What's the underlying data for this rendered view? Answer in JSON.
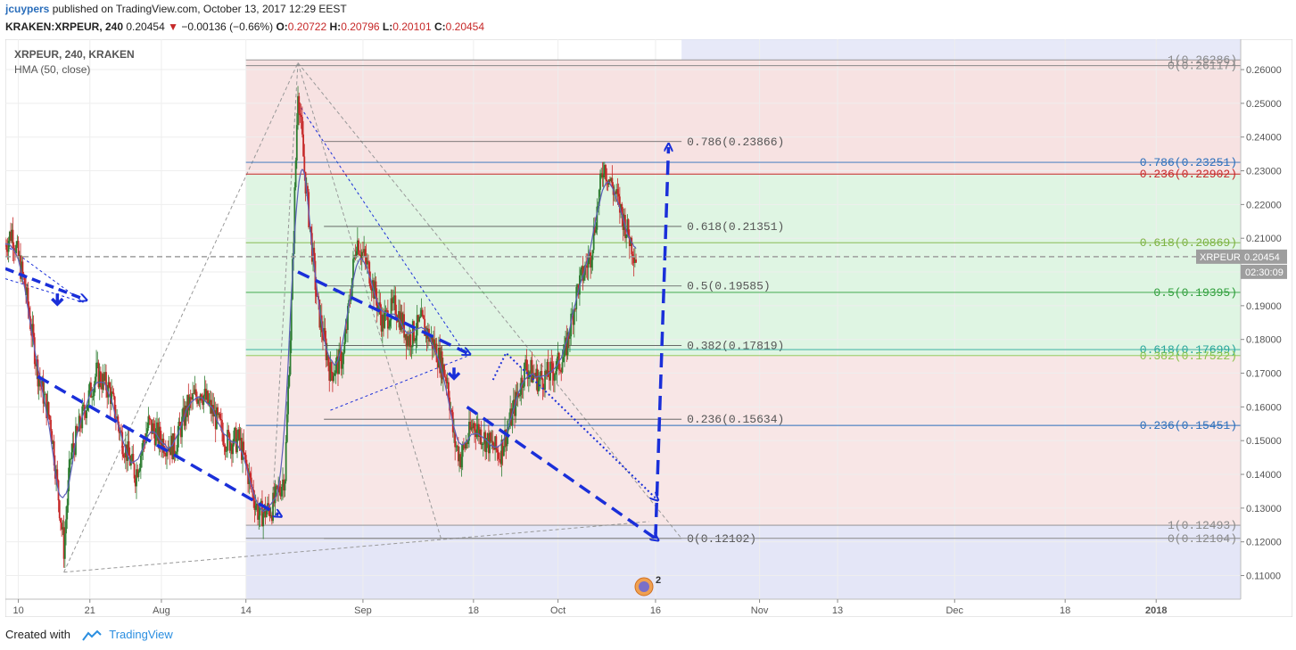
{
  "header": {
    "author": "jcuypers",
    "published": "published on TradingView.com, October 13, 2017 12:29 EEST"
  },
  "ohlc": {
    "symbol": "KRAKEN:XRPEUR, 240",
    "last": "0.20454",
    "change": "−0.00136 (−0.66%)",
    "o_label": "O:",
    "o": "0.20722",
    "h_label": "H:",
    "h": "0.20796",
    "l_label": "L:",
    "l": "0.20101",
    "c_label": "C:",
    "c": "0.20454"
  },
  "legend": {
    "title": "XRPEUR, 240, KRAKEN",
    "indicator": "HMA (50, close)"
  },
  "price_badge": {
    "symbol": "XRPEUR",
    "value": "0.20454",
    "countdown": "02:30:09"
  },
  "event_badge": {
    "count": "2"
  },
  "footer": {
    "created_with": "Created with",
    "brand": "TradingView"
  },
  "colors": {
    "up": "#2e7d32",
    "down": "#c62828",
    "hma": "#5b5fb8",
    "arrow": "#1a2fd9",
    "fib_red_zone": "#f3d6d6",
    "fib_green_zone": "#d7f2dc",
    "fib_blue_zone": "#dde0f5"
  },
  "chart_data": {
    "type": "candlestick",
    "y_axis": {
      "min": 0.103,
      "max": 0.269,
      "ticks": [
        0.26,
        0.25,
        0.24,
        0.23,
        0.22,
        0.21,
        0.2,
        0.19,
        0.18,
        0.17,
        0.16,
        0.15,
        0.14,
        0.13,
        0.12,
        0.11
      ],
      "tick_labels": [
        "0.26000",
        "0.25000",
        "0.24000",
        "0.23000",
        "0.22000",
        "0.21000",
        "0.20000",
        "0.19000",
        "0.18000",
        "0.17000",
        "0.16000",
        "0.15000",
        "0.14000",
        "0.13000",
        "0.12000",
        "0.11000"
      ]
    },
    "x_axis": {
      "start": "2017-07-08",
      "end": "2018-01-14",
      "ticks": [
        {
          "date": "2017-07-10",
          "label": "10"
        },
        {
          "date": "2017-07-21",
          "label": "21"
        },
        {
          "date": "2017-08-01",
          "label": "Aug"
        },
        {
          "date": "2017-08-14",
          "label": "14"
        },
        {
          "date": "2017-09-01",
          "label": "Sep"
        },
        {
          "date": "2017-09-18",
          "label": "18"
        },
        {
          "date": "2017-10-01",
          "label": "Oct"
        },
        {
          "date": "2017-10-16",
          "label": "16"
        },
        {
          "date": "2017-11-01",
          "label": "Nov"
        },
        {
          "date": "2017-11-13",
          "label": "13"
        },
        {
          "date": "2017-12-01",
          "label": "Dec"
        },
        {
          "date": "2017-12-18",
          "label": "18"
        },
        {
          "date": "2018-01-01",
          "label": "2018"
        }
      ]
    },
    "price_path": [
      [
        "2017-07-08",
        0.208
      ],
      [
        "2017-07-09",
        0.212
      ],
      [
        "2017-07-11",
        0.196
      ],
      [
        "2017-07-13",
        0.17
      ],
      [
        "2017-07-15",
        0.155
      ],
      [
        "2017-07-17",
        0.118
      ],
      [
        "2017-07-18",
        0.145
      ],
      [
        "2017-07-20",
        0.158
      ],
      [
        "2017-07-22",
        0.17
      ],
      [
        "2017-07-24",
        0.165
      ],
      [
        "2017-07-26",
        0.15
      ],
      [
        "2017-07-28",
        0.14
      ],
      [
        "2017-07-30",
        0.155
      ],
      [
        "2017-08-01",
        0.15
      ],
      [
        "2017-08-03",
        0.148
      ],
      [
        "2017-08-05",
        0.16
      ],
      [
        "2017-08-07",
        0.165
      ],
      [
        "2017-08-09",
        0.158
      ],
      [
        "2017-08-11",
        0.15
      ],
      [
        "2017-08-13",
        0.15
      ],
      [
        "2017-08-15",
        0.135
      ],
      [
        "2017-08-16",
        0.128
      ],
      [
        "2017-08-18",
        0.13
      ],
      [
        "2017-08-20",
        0.14
      ],
      [
        "2017-08-21",
        0.19
      ],
      [
        "2017-08-22",
        0.255
      ],
      [
        "2017-08-23",
        0.23
      ],
      [
        "2017-08-25",
        0.19
      ],
      [
        "2017-08-27",
        0.17
      ],
      [
        "2017-08-29",
        0.175
      ],
      [
        "2017-08-31",
        0.21
      ],
      [
        "2017-09-02",
        0.2
      ],
      [
        "2017-09-04",
        0.185
      ],
      [
        "2017-09-06",
        0.19
      ],
      [
        "2017-09-08",
        0.18
      ],
      [
        "2017-09-10",
        0.185
      ],
      [
        "2017-09-12",
        0.178
      ],
      [
        "2017-09-14",
        0.168
      ],
      [
        "2017-09-15",
        0.15
      ],
      [
        "2017-09-16",
        0.145
      ],
      [
        "2017-09-18",
        0.155
      ],
      [
        "2017-09-20",
        0.15
      ],
      [
        "2017-09-22",
        0.146
      ],
      [
        "2017-09-24",
        0.158
      ],
      [
        "2017-09-26",
        0.172
      ],
      [
        "2017-09-28",
        0.168
      ],
      [
        "2017-09-30",
        0.17
      ],
      [
        "2017-10-02",
        0.175
      ],
      [
        "2017-10-04",
        0.195
      ],
      [
        "2017-10-06",
        0.205
      ],
      [
        "2017-10-08",
        0.232
      ],
      [
        "2017-10-10",
        0.222
      ],
      [
        "2017-10-12",
        0.21
      ],
      [
        "2017-10-13",
        0.2045
      ]
    ],
    "fib_retracement_black": {
      "from": "2017-09-03",
      "to": "2017-10-20",
      "levels": [
        {
          "label": "0.786(0.23866)",
          "value": 0.23866
        },
        {
          "label": "0.618(0.21351)",
          "value": 0.21351
        },
        {
          "label": "0.5(0.19585)",
          "value": 0.19585
        },
        {
          "label": "0.382(0.17819)",
          "value": 0.17819
        },
        {
          "label": "0.236(0.15634)",
          "value": 0.15634
        },
        {
          "label": "0(0.12102)",
          "value": 0.12102
        }
      ]
    },
    "fib_retracement_right": {
      "levels": [
        {
          "label": "1(0.26286)",
          "value": 0.26286,
          "color": "#888888"
        },
        {
          "label": "0(0.26117)",
          "value": 0.26117,
          "color": "#888888"
        },
        {
          "label": "0.786(0.23251)",
          "value": 0.23251,
          "color": "#2a6ebb"
        },
        {
          "label": "0.236(0.22902)",
          "value": 0.22902,
          "color": "#c62828"
        },
        {
          "label": "0.618(0.20869)",
          "value": 0.20869,
          "color": "#7cb342"
        },
        {
          "label": "0.5(0.19395)",
          "value": 0.19395,
          "color": "#2e9e3a"
        },
        {
          "label": "0.618(0.17699)",
          "value": 0.17699,
          "color": "#26a69a"
        },
        {
          "label": "0.382(0.17522)",
          "value": 0.17522,
          "color": "#8bc34a"
        },
        {
          "label": "0.236(0.15451)",
          "value": 0.15451,
          "color": "#2a6ebb"
        },
        {
          "label": "1(0.12493)",
          "value": 0.12493,
          "color": "#888888"
        },
        {
          "label": "0(0.12104)",
          "value": 0.12104,
          "color": "#888888"
        }
      ]
    },
    "current_price": 0.20454,
    "title": "XRPEUR, 240, KRAKEN",
    "xlabel": "",
    "ylabel": ""
  }
}
